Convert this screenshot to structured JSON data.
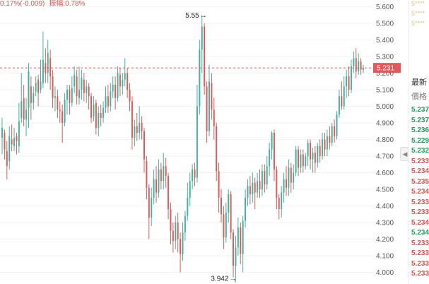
{
  "header": {
    "change_text": "0.17%(-0.009)",
    "amplitude_label": "振幅:",
    "amplitude_value": "0.78%"
  },
  "chart_data": {
    "type": "candlestick",
    "y_axis": {
      "ticks": [
        "5.600",
        "5.500",
        "5.400",
        "5.300",
        "5.200",
        "5.100",
        "5.000",
        "4.900",
        "4.800",
        "4.700",
        "4.600",
        "4.500",
        "4.400",
        "4.300",
        "4.200",
        "4.100",
        "4.000"
      ],
      "range": [
        3.93,
        5.64
      ],
      "position": "right"
    },
    "current_price": {
      "value": 5.231,
      "label": "5.231",
      "color": "#e05a5a"
    },
    "annotations": [
      {
        "label": "5.55",
        "value": 5.55,
        "type": "high"
      },
      {
        "label": "3.942",
        "value": 3.942,
        "type": "low"
      }
    ],
    "up_color": "#3fb5a0",
    "down_color": "#e05a5a",
    "candles": [
      {
        "o": 4.81,
        "c": 4.87,
        "h": 4.93,
        "l": 4.71
      },
      {
        "o": 4.84,
        "c": 4.74,
        "h": 4.86,
        "l": 4.68
      },
      {
        "o": 4.73,
        "c": 4.64,
        "h": 4.79,
        "l": 4.56
      },
      {
        "o": 4.67,
        "c": 4.82,
        "h": 4.88,
        "l": 4.62
      },
      {
        "o": 4.8,
        "c": 4.77,
        "h": 4.89,
        "l": 4.73
      },
      {
        "o": 4.76,
        "c": 4.81,
        "h": 4.87,
        "l": 4.73
      },
      {
        "o": 4.82,
        "c": 4.79,
        "h": 4.84,
        "l": 4.71
      },
      {
        "o": 4.76,
        "c": 4.91,
        "h": 5.02,
        "l": 4.72
      },
      {
        "o": 4.93,
        "c": 5.03,
        "h": 5.2,
        "l": 4.9
      },
      {
        "o": 5.05,
        "c": 4.92,
        "h": 5.13,
        "l": 4.88
      },
      {
        "o": 4.92,
        "c": 4.98,
        "h": 5.05,
        "l": 4.82
      },
      {
        "o": 4.99,
        "c": 5.21,
        "h": 5.26,
        "l": 4.87
      },
      {
        "o": 5.12,
        "c": 5.02,
        "h": 5.18,
        "l": 4.92
      },
      {
        "o": 5.02,
        "c": 5.08,
        "h": 5.12,
        "l": 4.98
      },
      {
        "o": 5.09,
        "c": 5.14,
        "h": 5.18,
        "l": 5.06
      },
      {
        "o": 5.16,
        "c": 5.08,
        "h": 5.19,
        "l": 5.0
      },
      {
        "o": 5.1,
        "c": 5.15,
        "h": 5.28,
        "l": 5.08
      },
      {
        "o": 5.14,
        "c": 5.28,
        "h": 5.45,
        "l": 5.11
      },
      {
        "o": 5.26,
        "c": 5.2,
        "h": 5.35,
        "l": 5.14
      },
      {
        "o": 5.2,
        "c": 5.32,
        "h": 5.4,
        "l": 5.14
      },
      {
        "o": 5.29,
        "c": 5.18,
        "h": 5.34,
        "l": 5.1
      },
      {
        "o": 5.18,
        "c": 5.05,
        "h": 5.22,
        "l": 4.99
      },
      {
        "o": 5.05,
        "c": 5.06,
        "h": 5.12,
        "l": 4.97
      },
      {
        "o": 5.06,
        "c": 4.98,
        "h": 5.1,
        "l": 4.93
      },
      {
        "o": 4.98,
        "c": 4.97,
        "h": 5.03,
        "l": 4.9
      },
      {
        "o": 4.97,
        "c": 4.9,
        "h": 5.01,
        "l": 4.78
      },
      {
        "o": 4.9,
        "c": 5.04,
        "h": 5.08,
        "l": 4.88
      },
      {
        "o": 5.04,
        "c": 5.1,
        "h": 5.13,
        "l": 4.95
      },
      {
        "o": 5.1,
        "c": 5.02,
        "h": 5.13,
        "l": 4.95
      },
      {
        "o": 5.02,
        "c": 5.11,
        "h": 5.18,
        "l": 5.0
      },
      {
        "o": 5.12,
        "c": 5.19,
        "h": 5.24,
        "l": 5.08
      },
      {
        "o": 5.18,
        "c": 5.06,
        "h": 5.22,
        "l": 5.01
      },
      {
        "o": 5.05,
        "c": 5.1,
        "h": 5.24,
        "l": 5.01
      },
      {
        "o": 5.1,
        "c": 5.17,
        "h": 5.22,
        "l": 5.04
      },
      {
        "o": 5.16,
        "c": 5.08,
        "h": 5.2,
        "l": 5.03
      },
      {
        "o": 5.08,
        "c": 5.12,
        "h": 5.16,
        "l": 5.02
      },
      {
        "o": 5.12,
        "c": 5.06,
        "h": 5.14,
        "l": 4.98
      },
      {
        "o": 5.06,
        "c": 4.93,
        "h": 5.08,
        "l": 4.9
      },
      {
        "o": 4.94,
        "c": 5.01,
        "h": 5.06,
        "l": 4.91
      },
      {
        "o": 5.02,
        "c": 4.87,
        "h": 5.04,
        "l": 4.83
      },
      {
        "o": 4.87,
        "c": 4.96,
        "h": 5.0,
        "l": 4.82
      },
      {
        "o": 4.96,
        "c": 4.93,
        "h": 5.01,
        "l": 4.88
      },
      {
        "o": 4.93,
        "c": 4.99,
        "h": 5.03,
        "l": 4.9
      },
      {
        "o": 4.99,
        "c": 5.06,
        "h": 5.12,
        "l": 4.96
      },
      {
        "o": 5.06,
        "c": 5.0,
        "h": 5.13,
        "l": 4.96
      },
      {
        "o": 5.0,
        "c": 5.09,
        "h": 5.14,
        "l": 4.97
      },
      {
        "o": 5.09,
        "c": 5.13,
        "h": 5.18,
        "l": 5.05
      },
      {
        "o": 5.13,
        "c": 5.05,
        "h": 5.18,
        "l": 4.98
      },
      {
        "o": 5.05,
        "c": 5.2,
        "h": 5.24,
        "l": 5.03
      },
      {
        "o": 5.19,
        "c": 5.12,
        "h": 5.23,
        "l": 5.06
      },
      {
        "o": 5.12,
        "c": 5.16,
        "h": 5.2,
        "l": 5.07
      },
      {
        "o": 5.16,
        "c": 5.2,
        "h": 5.29,
        "l": 5.12
      },
      {
        "o": 5.2,
        "c": 5.1,
        "h": 5.23,
        "l": 5.05
      },
      {
        "o": 5.1,
        "c": 5.03,
        "h": 5.14,
        "l": 4.97
      },
      {
        "o": 5.03,
        "c": 4.81,
        "h": 5.06,
        "l": 4.74
      },
      {
        "o": 4.81,
        "c": 4.88,
        "h": 4.92,
        "l": 4.76
      },
      {
        "o": 4.88,
        "c": 4.84,
        "h": 4.96,
        "l": 4.79
      },
      {
        "o": 4.84,
        "c": 4.9,
        "h": 5.0,
        "l": 4.8
      },
      {
        "o": 4.9,
        "c": 4.85,
        "h": 4.94,
        "l": 4.8
      },
      {
        "o": 4.85,
        "c": 4.68,
        "h": 4.87,
        "l": 4.6
      },
      {
        "o": 4.67,
        "c": 4.51,
        "h": 4.7,
        "l": 4.44
      },
      {
        "o": 4.51,
        "c": 4.33,
        "h": 4.53,
        "l": 4.2
      },
      {
        "o": 4.33,
        "c": 4.45,
        "h": 4.51,
        "l": 4.28
      },
      {
        "o": 4.45,
        "c": 4.56,
        "h": 4.62,
        "l": 4.41
      },
      {
        "o": 4.56,
        "c": 4.48,
        "h": 4.64,
        "l": 4.42
      },
      {
        "o": 4.48,
        "c": 4.62,
        "h": 4.68,
        "l": 4.45
      },
      {
        "o": 4.62,
        "c": 4.55,
        "h": 4.66,
        "l": 4.5
      },
      {
        "o": 4.55,
        "c": 4.64,
        "h": 4.72,
        "l": 4.5
      },
      {
        "o": 4.64,
        "c": 4.58,
        "h": 4.69,
        "l": 4.51
      },
      {
        "o": 4.58,
        "c": 4.38,
        "h": 4.6,
        "l": 4.32
      },
      {
        "o": 4.38,
        "c": 4.25,
        "h": 4.42,
        "l": 4.17
      },
      {
        "o": 4.25,
        "c": 4.19,
        "h": 4.3,
        "l": 4.12
      },
      {
        "o": 4.19,
        "c": 4.3,
        "h": 4.34,
        "l": 4.14
      },
      {
        "o": 4.3,
        "c": 4.2,
        "h": 4.36,
        "l": 4.12
      },
      {
        "o": 4.2,
        "c": 4.11,
        "h": 4.24,
        "l": 4.0
      },
      {
        "o": 4.11,
        "c": 4.24,
        "h": 4.3,
        "l": 4.07
      },
      {
        "o": 4.24,
        "c": 4.34,
        "h": 4.37,
        "l": 4.19
      },
      {
        "o": 4.34,
        "c": 4.45,
        "h": 4.54,
        "l": 4.31
      },
      {
        "o": 4.45,
        "c": 4.55,
        "h": 4.6,
        "l": 4.4
      },
      {
        "o": 4.55,
        "c": 4.62,
        "h": 4.65,
        "l": 4.5
      },
      {
        "o": 4.62,
        "c": 4.57,
        "h": 4.66,
        "l": 4.52
      },
      {
        "o": 4.57,
        "c": 5.0,
        "h": 5.13,
        "l": 4.54
      },
      {
        "o": 5.0,
        "c": 5.34,
        "h": 5.4,
        "l": 4.95
      },
      {
        "o": 5.34,
        "c": 5.48,
        "h": 5.55,
        "l": 5.2
      },
      {
        "o": 5.48,
        "c": 5.12,
        "h": 5.5,
        "l": 5.07
      },
      {
        "o": 5.12,
        "c": 4.85,
        "h": 5.15,
        "l": 4.78
      },
      {
        "o": 4.85,
        "c": 5.15,
        "h": 5.25,
        "l": 4.82
      },
      {
        "o": 5.14,
        "c": 4.98,
        "h": 5.2,
        "l": 4.92
      },
      {
        "o": 4.98,
        "c": 4.88,
        "h": 5.05,
        "l": 4.8
      },
      {
        "o": 4.88,
        "c": 4.61,
        "h": 4.9,
        "l": 4.55
      },
      {
        "o": 4.61,
        "c": 4.45,
        "h": 4.66,
        "l": 4.36
      },
      {
        "o": 4.45,
        "c": 4.35,
        "h": 4.5,
        "l": 4.3
      },
      {
        "o": 4.35,
        "c": 4.21,
        "h": 4.4,
        "l": 4.14
      },
      {
        "o": 4.21,
        "c": 4.36,
        "h": 4.42,
        "l": 4.18
      },
      {
        "o": 4.36,
        "c": 4.47,
        "h": 4.5,
        "l": 4.3
      },
      {
        "o": 4.47,
        "c": 4.24,
        "h": 4.49,
        "l": 4.2
      },
      {
        "o": 4.24,
        "c": 4.04,
        "h": 4.26,
        "l": 3.97
      },
      {
        "o": 4.04,
        "c": 4.15,
        "h": 4.22,
        "l": 3.94
      },
      {
        "o": 4.15,
        "c": 4.27,
        "h": 4.33,
        "l": 4.1
      },
      {
        "o": 4.27,
        "c": 4.11,
        "h": 4.3,
        "l": 4.05
      },
      {
        "o": 4.11,
        "c": 4.31,
        "h": 4.34,
        "l": 4.0
      },
      {
        "o": 4.31,
        "c": 4.45,
        "h": 4.5,
        "l": 4.27
      },
      {
        "o": 4.45,
        "c": 4.52,
        "h": 4.56,
        "l": 4.4
      },
      {
        "o": 4.52,
        "c": 4.47,
        "h": 4.58,
        "l": 4.41
      },
      {
        "o": 4.47,
        "c": 4.54,
        "h": 4.6,
        "l": 4.42
      },
      {
        "o": 4.54,
        "c": 4.48,
        "h": 4.57,
        "l": 4.38
      },
      {
        "o": 4.48,
        "c": 4.55,
        "h": 4.6,
        "l": 4.45
      },
      {
        "o": 4.55,
        "c": 4.5,
        "h": 4.62,
        "l": 4.45
      },
      {
        "o": 4.5,
        "c": 4.61,
        "h": 4.65,
        "l": 4.46
      },
      {
        "o": 4.61,
        "c": 4.53,
        "h": 4.65,
        "l": 4.48
      },
      {
        "o": 4.53,
        "c": 4.64,
        "h": 4.7,
        "l": 4.5
      },
      {
        "o": 4.64,
        "c": 4.74,
        "h": 4.78,
        "l": 4.58
      },
      {
        "o": 4.74,
        "c": 4.84,
        "h": 4.85,
        "l": 4.68
      },
      {
        "o": 4.84,
        "c": 4.62,
        "h": 4.86,
        "l": 4.55
      },
      {
        "o": 4.62,
        "c": 4.45,
        "h": 4.64,
        "l": 4.38
      },
      {
        "o": 4.45,
        "c": 4.38,
        "h": 4.47,
        "l": 4.32
      },
      {
        "o": 4.38,
        "c": 4.48,
        "h": 4.52,
        "l": 4.33
      },
      {
        "o": 4.48,
        "c": 4.56,
        "h": 4.6,
        "l": 4.42
      },
      {
        "o": 4.56,
        "c": 4.51,
        "h": 4.64,
        "l": 4.46
      },
      {
        "o": 4.51,
        "c": 4.63,
        "h": 4.68,
        "l": 4.46
      },
      {
        "o": 4.63,
        "c": 4.54,
        "h": 4.66,
        "l": 4.48
      },
      {
        "o": 4.54,
        "c": 4.6,
        "h": 4.65,
        "l": 4.5
      },
      {
        "o": 4.6,
        "c": 4.74,
        "h": 4.76,
        "l": 4.58
      },
      {
        "o": 4.74,
        "c": 4.63,
        "h": 4.76,
        "l": 4.58
      },
      {
        "o": 4.63,
        "c": 4.71,
        "h": 4.74,
        "l": 4.6
      },
      {
        "o": 4.71,
        "c": 4.64,
        "h": 4.74,
        "l": 4.6
      },
      {
        "o": 4.64,
        "c": 4.7,
        "h": 4.72,
        "l": 4.62
      },
      {
        "o": 4.7,
        "c": 4.78,
        "h": 4.8,
        "l": 4.64
      },
      {
        "o": 4.78,
        "c": 4.68,
        "h": 4.8,
        "l": 4.62
      },
      {
        "o": 4.68,
        "c": 4.72,
        "h": 4.75,
        "l": 4.6
      },
      {
        "o": 4.72,
        "c": 4.66,
        "h": 4.76,
        "l": 4.6
      },
      {
        "o": 4.66,
        "c": 4.76,
        "h": 4.78,
        "l": 4.63
      },
      {
        "o": 4.76,
        "c": 4.7,
        "h": 4.8,
        "l": 4.66
      },
      {
        "o": 4.7,
        "c": 4.8,
        "h": 4.84,
        "l": 4.68
      },
      {
        "o": 4.8,
        "c": 4.74,
        "h": 4.84,
        "l": 4.7
      },
      {
        "o": 4.74,
        "c": 4.82,
        "h": 4.86,
        "l": 4.7
      },
      {
        "o": 4.82,
        "c": 4.78,
        "h": 4.88,
        "l": 4.74
      },
      {
        "o": 4.78,
        "c": 4.88,
        "h": 4.9,
        "l": 4.76
      },
      {
        "o": 4.88,
        "c": 4.82,
        "h": 4.92,
        "l": 4.78
      },
      {
        "o": 4.82,
        "c": 4.95,
        "h": 4.97,
        "l": 4.8
      },
      {
        "o": 4.95,
        "c": 5.06,
        "h": 5.1,
        "l": 4.93
      },
      {
        "o": 5.06,
        "c": 5.0,
        "h": 5.15,
        "l": 4.98
      },
      {
        "o": 5.0,
        "c": 5.12,
        "h": 5.18,
        "l": 4.98
      },
      {
        "o": 5.12,
        "c": 5.18,
        "h": 5.22,
        "l": 5.05
      },
      {
        "o": 5.18,
        "c": 5.1,
        "h": 5.24,
        "l": 5.06
      },
      {
        "o": 5.1,
        "c": 5.24,
        "h": 5.28,
        "l": 5.08
      },
      {
        "o": 5.24,
        "c": 5.29,
        "h": 5.33,
        "l": 5.2
      },
      {
        "o": 5.29,
        "c": 5.21,
        "h": 5.35,
        "l": 5.17
      },
      {
        "o": 5.21,
        "c": 5.27,
        "h": 5.32,
        "l": 5.19
      },
      {
        "o": 5.27,
        "c": 5.22,
        "h": 5.29,
        "l": 5.19
      },
      {
        "o": 5.22,
        "c": 5.231,
        "h": 5.25,
        "l": 5.2
      }
    ]
  },
  "side_panel": {
    "title": "最新",
    "column_label": "價格",
    "top_items": [
      "5****",
      "5****",
      "5****"
    ],
    "prices": [
      {
        "value": "5.237",
        "color": "#1aa05c"
      },
      {
        "value": "5.237",
        "color": "#1aa05c"
      },
      {
        "value": "5.236",
        "color": "#1aa05c"
      },
      {
        "value": "5.229",
        "color": "#1aa05c"
      },
      {
        "value": "5.232",
        "color": "#1aa05c"
      },
      {
        "value": "5.233",
        "color": "#d9534f"
      },
      {
        "value": "5.234",
        "color": "#d9534f"
      },
      {
        "value": "5.235",
        "color": "#d9534f"
      },
      {
        "value": "5.234",
        "color": "#d9534f"
      },
      {
        "value": "5.233",
        "color": "#d9534f"
      },
      {
        "value": "5.233",
        "color": "#d9534f"
      },
      {
        "value": "5.234",
        "color": "#d9534f"
      },
      {
        "value": "5.234",
        "color": "#1aa05c"
      },
      {
        "value": "5.233",
        "color": "#d9534f"
      },
      {
        "value": "5.233",
        "color": "#d9534f"
      },
      {
        "value": "5.233",
        "color": "#d9534f"
      },
      {
        "value": "5.233",
        "color": "#d9534f"
      }
    ],
    "toggle_icon": "chevron-left-icon"
  }
}
